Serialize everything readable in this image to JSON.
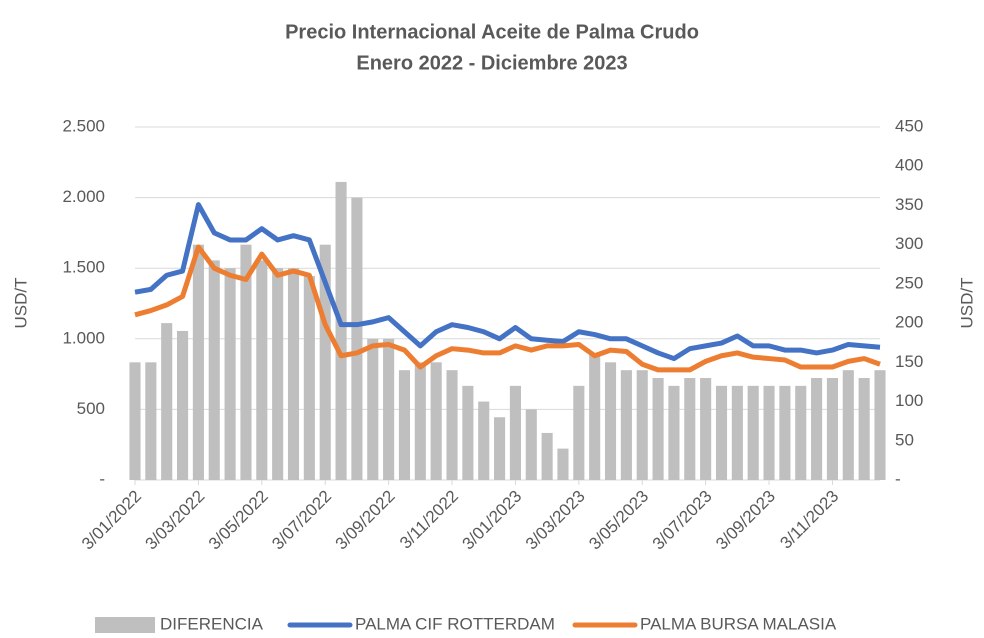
{
  "chart_data": {
    "type": "line",
    "title": "Precio Internacional Aceite de Palma Crudo",
    "subtitle": "Enero 2022 - Diciembre 2023",
    "ylabel": "USD/T",
    "y2label": "USD/T",
    "categories": [
      "3/01/2022",
      null,
      null,
      null,
      "3/03/2022",
      null,
      null,
      null,
      "3/05/2022",
      null,
      null,
      null,
      "3/07/2022",
      null,
      null,
      null,
      "3/09/2022",
      null,
      null,
      null,
      "3/11/2022",
      null,
      null,
      null,
      "3/01/2023",
      null,
      null,
      null,
      "3/03/2023",
      null,
      null,
      null,
      "3/05/2023",
      null,
      null,
      null,
      "3/07/2023",
      null,
      null,
      null,
      "3/09/2023",
      null,
      null,
      null,
      "3/11/2023",
      null,
      null,
      null
    ],
    "series": [
      {
        "name": "DIFERENCIA",
        "type": "bar",
        "axis": "y2",
        "color": "#bfbfbf",
        "values": [
          150,
          150,
          200,
          190,
          300,
          280,
          270,
          300,
          280,
          270,
          270,
          260,
          300,
          380,
          360,
          180,
          180,
          140,
          150,
          150,
          140,
          120,
          100,
          80,
          120,
          90,
          60,
          40,
          120,
          160,
          150,
          140,
          140,
          130,
          120,
          130,
          130,
          120,
          120,
          120,
          120,
          120,
          120,
          130,
          130,
          140,
          130,
          140
        ]
      },
      {
        "name": "PALMA CIF ROTTERDAM",
        "type": "line",
        "color": "#4472c4",
        "values": [
          1330,
          1350,
          1450,
          1480,
          1950,
          1750,
          1700,
          1700,
          1780,
          1700,
          1730,
          1700,
          1400,
          1100,
          1100,
          1120,
          1150,
          1050,
          950,
          1050,
          1100,
          1080,
          1050,
          1000,
          1080,
          1000,
          990,
          980,
          1050,
          1030,
          1000,
          1000,
          950,
          900,
          860,
          930,
          950,
          970,
          1020,
          950,
          950,
          920,
          920,
          900,
          920,
          960,
          950,
          940
        ]
      },
      {
        "name": "PALMA BURSA MALASIA",
        "type": "line",
        "color": "#ed7d31",
        "values": [
          1170,
          1200,
          1240,
          1300,
          1650,
          1500,
          1450,
          1420,
          1600,
          1450,
          1480,
          1450,
          1100,
          880,
          900,
          950,
          960,
          920,
          800,
          880,
          930,
          920,
          900,
          900,
          950,
          920,
          950,
          950,
          960,
          880,
          920,
          910,
          820,
          780,
          780,
          780,
          840,
          880,
          900,
          870,
          860,
          850,
          800,
          800,
          800,
          840,
          860,
          820
        ]
      }
    ],
    "ylim": [
      0,
      2500
    ],
    "yticks": [
      {
        "value": 0,
        "label": "-"
      },
      500,
      {
        "value": 1000,
        "label": "1.000"
      },
      {
        "value": 1500,
        "label": "1.500"
      },
      {
        "value": 2000,
        "label": "2.000"
      },
      {
        "value": 2500,
        "label": "2.500"
      }
    ],
    "y2lim": [
      0,
      450
    ],
    "y2ticks": [
      {
        "value": 0,
        "label": "-"
      },
      50,
      100,
      150,
      200,
      250,
      300,
      350,
      400,
      450
    ],
    "grid": true,
    "legend": "bottom"
  }
}
